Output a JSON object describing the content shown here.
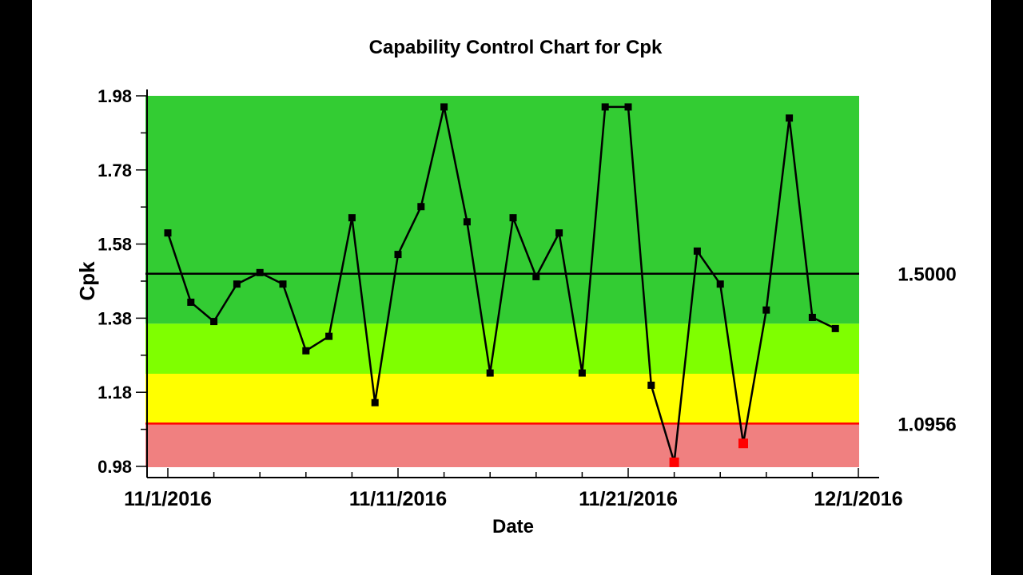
{
  "chart_data": {
    "type": "line",
    "title": "Capability Control Chart for Cpk",
    "xlabel": "Date",
    "ylabel": "Cpk",
    "x_ticks": [
      "11/1/2016",
      "11/11/2016",
      "11/21/2016",
      "12/1/2016"
    ],
    "y_ticks": [
      "0.98",
      "1.18",
      "1.38",
      "1.58",
      "1.78",
      "1.98"
    ],
    "ylim": [
      0.98,
      1.98
    ],
    "xlim": [
      "2016-11-01",
      "2016-12-01"
    ],
    "grid": false,
    "zones": [
      {
        "from": 1.365,
        "to": 1.98,
        "color": "#33cc33"
      },
      {
        "from": 1.23,
        "to": 1.365,
        "color": "#7fff00"
      },
      {
        "from": 1.0956,
        "to": 1.23,
        "color": "#ffff00"
      },
      {
        "from": 0.98,
        "to": 1.0956,
        "color": "#f08080"
      }
    ],
    "reference_lines": [
      {
        "value": 1.5,
        "label": "1.5000",
        "color": "#000000"
      },
      {
        "value": 1.0956,
        "label": "1.0956",
        "color": "#ff0000"
      }
    ],
    "out_of_limit_color": "#ff0000",
    "series": [
      {
        "x": [
          "2016-11-01",
          "2016-11-02",
          "2016-11-03",
          "2016-11-04",
          "2016-11-05",
          "2016-11-06",
          "2016-11-07",
          "2016-11-08",
          "2016-11-09",
          "2016-11-10",
          "2016-11-11",
          "2016-11-12",
          "2016-11-13",
          "2016-11-14",
          "2016-11-15",
          "2016-11-16",
          "2016-11-17",
          "2016-11-18",
          "2016-11-19",
          "2016-11-20",
          "2016-11-21",
          "2016-11-22",
          "2016-11-23",
          "2016-11-24",
          "2016-11-25",
          "2016-11-26",
          "2016-11-27",
          "2016-11-28",
          "2016-11-29",
          "2016-11-30"
        ],
        "values": [
          1.61,
          1.423,
          1.371,
          1.472,
          1.503,
          1.472,
          1.292,
          1.331,
          1.651,
          1.152,
          1.552,
          1.681,
          1.95,
          1.64,
          1.232,
          1.651,
          1.492,
          1.61,
          1.232,
          1.95,
          1.95,
          1.199,
          0.991,
          1.561,
          1.472,
          1.042,
          1.402,
          1.92,
          1.382,
          1.352
        ]
      }
    ]
  }
}
